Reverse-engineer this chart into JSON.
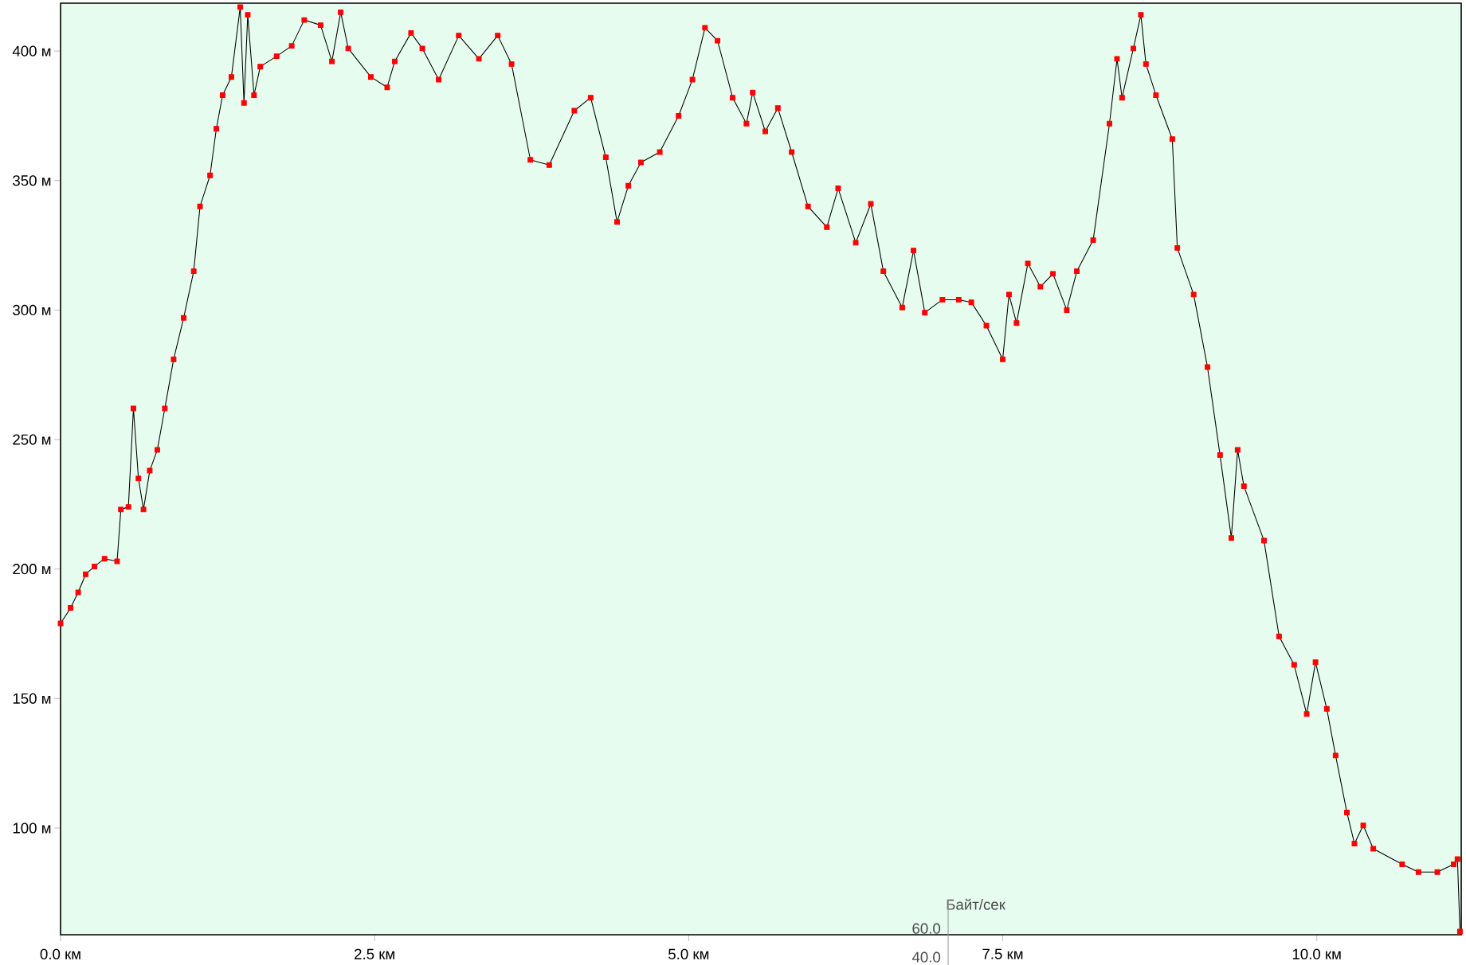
{
  "chart_data": {
    "type": "line",
    "x": [
      0.0,
      0.08,
      0.14,
      0.2,
      0.27,
      0.35,
      0.45,
      0.48,
      0.54,
      0.58,
      0.62,
      0.66,
      0.71,
      0.77,
      0.83,
      0.9,
      0.98,
      1.06,
      1.11,
      1.19,
      1.24,
      1.29,
      1.36,
      1.43,
      1.46,
      1.49,
      1.54,
      1.59,
      1.72,
      1.84,
      1.94,
      2.07,
      2.16,
      2.23,
      2.29,
      2.47,
      2.6,
      2.66,
      2.79,
      2.88,
      3.01,
      3.17,
      3.33,
      3.48,
      3.59,
      3.74,
      3.89,
      4.09,
      4.22,
      4.34,
      4.43,
      4.52,
      4.62,
      4.77,
      4.92,
      5.03,
      5.13,
      5.23,
      5.35,
      5.46,
      5.51,
      5.61,
      5.71,
      5.82,
      5.95,
      6.1,
      6.19,
      6.33,
      6.45,
      6.55,
      6.7,
      6.79,
      6.88,
      7.02,
      7.15,
      7.25,
      7.37,
      7.5,
      7.55,
      7.61,
      7.7,
      7.8,
      7.9,
      8.01,
      8.09,
      8.22,
      8.35,
      8.41,
      8.45,
      8.54,
      8.6,
      8.64,
      8.72,
      8.85,
      8.89,
      9.02,
      9.13,
      9.23,
      9.32,
      9.37,
      9.42,
      9.58,
      9.7,
      9.82,
      9.92,
      9.99,
      10.08,
      10.15,
      10.24,
      10.3,
      10.37,
      10.45,
      10.68,
      10.81,
      10.96,
      11.09,
      11.12,
      11.14
    ],
    "series": [
      {
        "color": "#ff0000",
        "values": [
          179,
          185,
          191,
          198,
          201,
          204,
          203,
          223,
          224,
          262,
          235,
          223,
          238,
          246,
          262,
          281,
          297,
          315,
          340,
          352,
          370,
          383,
          390,
          417,
          380,
          414,
          383,
          394,
          398,
          402,
          412,
          410,
          396,
          415,
          401,
          390,
          386,
          396,
          407,
          401,
          389,
          406,
          397,
          406,
          395,
          358,
          356,
          377,
          382,
          359,
          334,
          348,
          357,
          361,
          375,
          389,
          409,
          404,
          382,
          372,
          384,
          369,
          378,
          361,
          340,
          332,
          347,
          326,
          341,
          315,
          301,
          323,
          299,
          304,
          304,
          303,
          294,
          281,
          306,
          295,
          318,
          309,
          314,
          300,
          315,
          327,
          372,
          397,
          382,
          401,
          414,
          395,
          383,
          366,
          324,
          306,
          278,
          244,
          212,
          246,
          232,
          211,
          174,
          163,
          144,
          164,
          146,
          128,
          106,
          94,
          101,
          92,
          86,
          83,
          83,
          86,
          88,
          60
        ]
      }
    ],
    "xlim": [
      0,
      11.15
    ],
    "ylim": [
      58.8,
      418.5
    ],
    "xticks": [
      {
        "value": 0,
        "label": "0.0 км"
      },
      {
        "value": 2.5,
        "label": "2.5 км"
      },
      {
        "value": 5,
        "label": "5.0 км"
      },
      {
        "value": 7.5,
        "label": "7.5 км"
      },
      {
        "value": 10,
        "label": "10.0 км"
      }
    ],
    "yticks": [
      {
        "value": 100,
        "label": "100 м"
      },
      {
        "value": 150,
        "label": "150 м"
      },
      {
        "value": 200,
        "label": "200 м"
      },
      {
        "value": 250,
        "label": "250 м"
      },
      {
        "value": 300,
        "label": "300 м"
      },
      {
        "value": 350,
        "label": "350 м"
      },
      {
        "value": 400,
        "label": "400 м"
      }
    ],
    "marker": "square",
    "grid": false,
    "annotations": [
      "Байт/сек",
      "60.0",
      "40.0"
    ]
  }
}
